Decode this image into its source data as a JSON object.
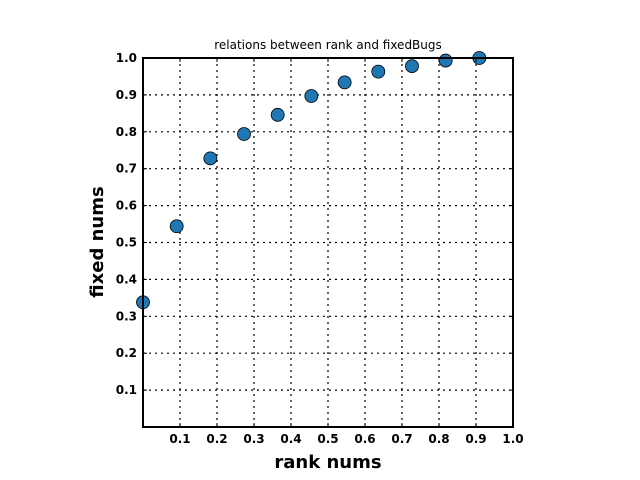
{
  "chart_data": {
    "type": "scatter",
    "title": "relations between rank and fixedBugs",
    "xlabel": "rank nums",
    "ylabel": "fixed nums",
    "xlim": [
      0,
      1.0
    ],
    "ylim": [
      0,
      1.0
    ],
    "xticks": [
      "0.1",
      "0.2",
      "0.3",
      "0.4",
      "0.5",
      "0.6",
      "0.7",
      "0.8",
      "0.9",
      "1.0"
    ],
    "yticks": [
      "0.1",
      "0.2",
      "0.3",
      "0.4",
      "0.5",
      "0.6",
      "0.7",
      "0.8",
      "0.9",
      "1.0"
    ],
    "xtick_values": [
      0.1,
      0.2,
      0.3,
      0.4,
      0.5,
      0.6,
      0.7,
      0.8,
      0.9,
      1.0
    ],
    "ytick_values": [
      0.1,
      0.2,
      0.3,
      0.4,
      0.5,
      0.6,
      0.7,
      0.8,
      0.9,
      1.0
    ],
    "grid": true,
    "marker_color": "#1f77b4",
    "points": [
      {
        "x": 0.0,
        "y": 0.338
      },
      {
        "x": 0.091,
        "y": 0.544
      },
      {
        "x": 0.182,
        "y": 0.728
      },
      {
        "x": 0.273,
        "y": 0.794
      },
      {
        "x": 0.364,
        "y": 0.846
      },
      {
        "x": 0.455,
        "y": 0.897
      },
      {
        "x": 0.545,
        "y": 0.934
      },
      {
        "x": 0.636,
        "y": 0.963
      },
      {
        "x": 0.727,
        "y": 0.978
      },
      {
        "x": 0.818,
        "y": 0.993
      },
      {
        "x": 0.909,
        "y": 1.0
      }
    ]
  }
}
